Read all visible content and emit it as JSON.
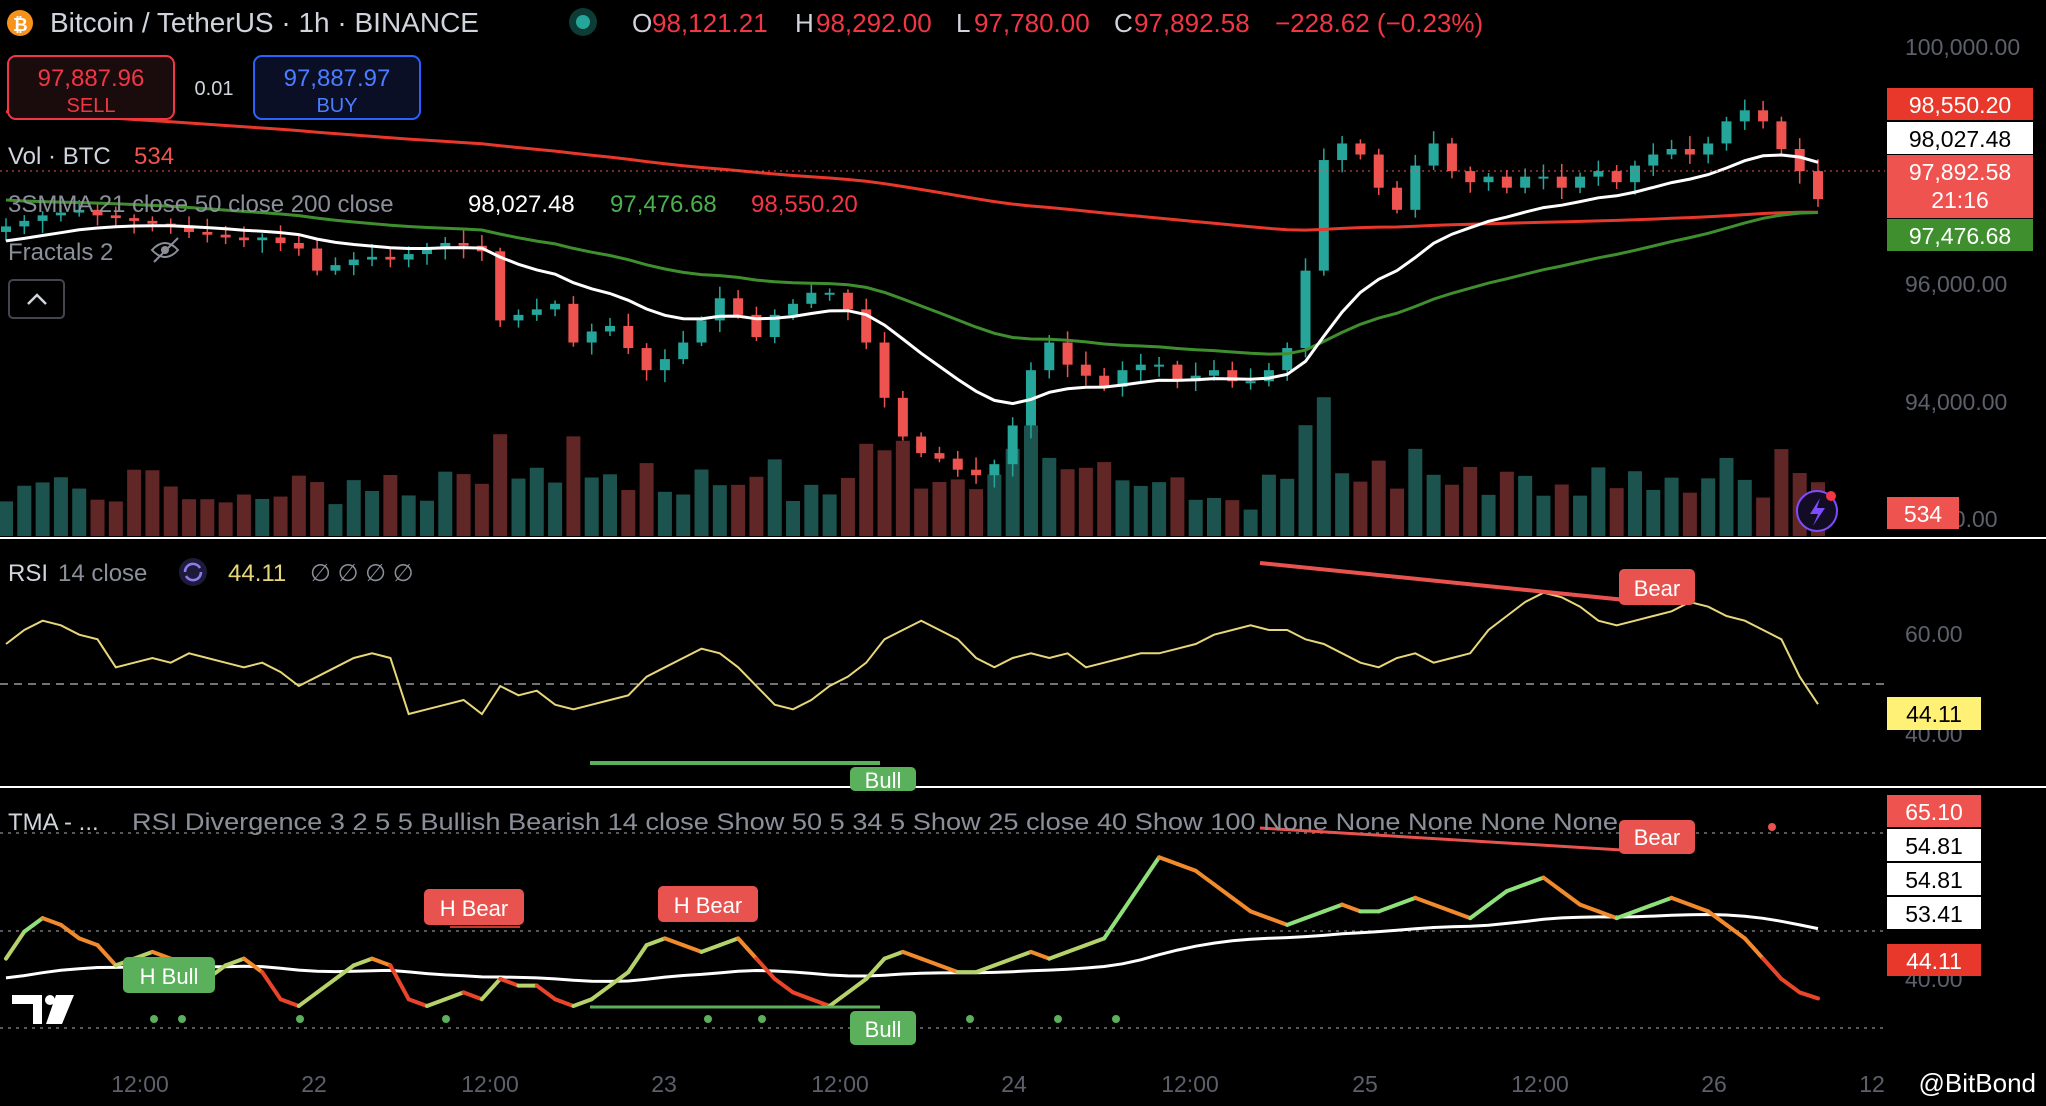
{
  "header": {
    "symbol": "Bitcoin / TetherUS · 1h · BINANCE",
    "ohlc": {
      "o_label": "O",
      "o": "98,121.21",
      "h_label": "H",
      "h": "98,292.00",
      "l_label": "L",
      "l": "97,780.00",
      "c_label": "C",
      "c": "97,892.58",
      "change": "−228.62 (−0.23%)"
    }
  },
  "trade": {
    "sell_price": "97,887.96",
    "sell_label": "SELL",
    "qty": "0.01",
    "buy_price": "97,887.97",
    "buy_label": "BUY"
  },
  "legends": {
    "vol_label": "Vol · BTC",
    "vol_value": "534",
    "smma_label": "3SMMA 21 close 50 close 200 close",
    "smma_v1": "98,027.48",
    "smma_v2": "97,476.68",
    "smma_v3": "98,550.20",
    "fractals": "Fractals 2",
    "rsi_label": "RSI",
    "rsi_params": "14 close",
    "rsi_value": "44.11",
    "rsi_extra": "∅ ∅ ∅ ∅",
    "tma_label": "TMA - ...",
    "tma_params": "RSI Divergence 3 2 5 5 Bullish Bearish 14 close Show 50 5 34 5 Show 25 close 40 Show 100 None None None None None"
  },
  "price_axis": {
    "ticks": [
      "100,000.00",
      "96,000.00",
      "94,000.00",
      "00.00"
    ],
    "tags": {
      "smma200": "98,550.20",
      "smma21": "98,027.48",
      "last": "97,892.58",
      "countdown": "21:16",
      "smma50": "97,476.68",
      "volume": "534"
    }
  },
  "rsi_axis": {
    "ticks": [
      "60.00",
      "40.00"
    ],
    "value_tag": "44.11"
  },
  "tma_axis": {
    "tags": [
      "65.10",
      "54.81",
      "54.81",
      "53.41",
      "44.11"
    ],
    "tick": "40.00"
  },
  "time_axis": {
    "labels": [
      "12:00",
      "22",
      "12:00",
      "23",
      "12:00",
      "24",
      "12:00",
      "25",
      "12:00",
      "26",
      "12"
    ]
  },
  "signals": {
    "bear": "Bear",
    "bull": "Bull",
    "hbear": "H Bear",
    "hbull": "H Bull"
  },
  "watermark": "@BitBond",
  "colors": {
    "up": "#26a69a",
    "down": "#ef5350",
    "smma200": "#e8372b",
    "smma50": "#3f8f2e",
    "smma21": "#ffffff",
    "rsi": "#e7d77a",
    "bear": "#e8534f",
    "bull": "#5bb15b"
  },
  "chart_data": {
    "type": "line",
    "price_series": [
      97400,
      97500,
      97600,
      97650,
      97700,
      97600,
      97550,
      97500,
      97450,
      97400,
      97300,
      97250,
      97200,
      97150,
      97200,
      97100,
      97000,
      96600,
      96700,
      96800,
      96850,
      96800,
      96900,
      97000,
      97100,
      97050,
      96950,
      95700,
      95800,
      95900,
      96000,
      95300,
      95500,
      95600,
      95200,
      94800,
      95000,
      95300,
      95700,
      96100,
      95800,
      95400,
      95800,
      96000,
      96200,
      96200,
      95900,
      95300,
      94300,
      93600,
      93300,
      93200,
      93000,
      92900,
      93100,
      93800,
      94800,
      95300,
      94900,
      94700,
      94500,
      94800,
      94900,
      94900,
      94600,
      94700,
      94800,
      94600,
      94600,
      94800,
      95200,
      96600,
      98600,
      98900,
      98700,
      98100,
      97700,
      98500,
      98900,
      98400,
      98200,
      98300,
      98100,
      98300,
      98300,
      98100,
      98300,
      98400,
      98200,
      98500,
      98700,
      98800,
      98700,
      98900,
      99300,
      99500,
      99300,
      98800,
      98400,
      97893
    ],
    "rsi_series": [
      57,
      60,
      62,
      61,
      59,
      58,
      52,
      53,
      54,
      53,
      55,
      54,
      53,
      52,
      53,
      51,
      48,
      50,
      52,
      54,
      55,
      54,
      42,
      43,
      44,
      45,
      42,
      48,
      46,
      47,
      44,
      43,
      44,
      45,
      46,
      50,
      52,
      54,
      56,
      55,
      52,
      48,
      44,
      43,
      45,
      48,
      50,
      53,
      58,
      60,
      62,
      60,
      58,
      54,
      52,
      54,
      55,
      54,
      55,
      52,
      53,
      54,
      55,
      55,
      56,
      57,
      59,
      60,
      61,
      60,
      60,
      58,
      57,
      55,
      53,
      52,
      54,
      55,
      53,
      54,
      55,
      60,
      63,
      66,
      68,
      67,
      65,
      62,
      61,
      62,
      63,
      64,
      66,
      65,
      63,
      62,
      60,
      58,
      50,
      44.11
    ],
    "tma_series": [
      50,
      54,
      56,
      55,
      53,
      52,
      49,
      50,
      51,
      50,
      48,
      47,
      49,
      50,
      48,
      44,
      43,
      45,
      47,
      49,
      50,
      49,
      44,
      43,
      44,
      45,
      44,
      47,
      46,
      46,
      44,
      43,
      44,
      46,
      48,
      52,
      53,
      52,
      51,
      52,
      53,
      50,
      47,
      45,
      44,
      43,
      45,
      47,
      50,
      51,
      50,
      49,
      48,
      48,
      49,
      50,
      51,
      50,
      51,
      52,
      53,
      57,
      61,
      65,
      64,
      63,
      61,
      59,
      57,
      56,
      55,
      56,
      57,
      58,
      57,
      57,
      58,
      59,
      58,
      57,
      56,
      58,
      60,
      61,
      62,
      60,
      58,
      57,
      56,
      57,
      58,
      59,
      58,
      57,
      55,
      53,
      50,
      47,
      45,
      44.11
    ],
    "ylim_price": [
      92000,
      100500
    ],
    "ylim_rsi": [
      30,
      75
    ],
    "ylim_tma": [
      35,
      72
    ]
  }
}
